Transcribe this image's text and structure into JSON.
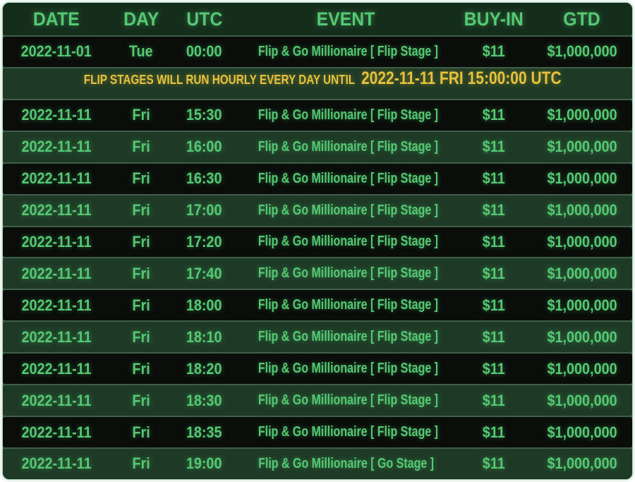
{
  "table": {
    "columns": [
      {
        "key": "date",
        "label": "DATE"
      },
      {
        "key": "day",
        "label": "DAY"
      },
      {
        "key": "utc",
        "label": "UTC"
      },
      {
        "key": "event",
        "label": "EVENT"
      },
      {
        "key": "buyin",
        "label": "BUY-IN"
      },
      {
        "key": "gtd",
        "label": "GTD"
      }
    ],
    "rows": [
      {
        "type": "event",
        "date": "2022-11-01",
        "day": "Tue",
        "utc": "00:00",
        "event": "Flip & Go Millionaire [ Flip Stage ]",
        "buyin": "$11",
        "gtd": "$1,000,000"
      },
      {
        "type": "notice",
        "notice_prefix": "FLIP STAGES WILL RUN HOURLY EVERY DAY UNTIL",
        "notice_highlight": "2022-11-11 FRI 15:00:00 UTC"
      },
      {
        "type": "event",
        "date": "2022-11-11",
        "day": "Fri",
        "utc": "15:30",
        "event": "Flip & Go Millionaire [ Flip Stage ]",
        "buyin": "$11",
        "gtd": "$1,000,000"
      },
      {
        "type": "event",
        "date": "2022-11-11",
        "day": "Fri",
        "utc": "16:00",
        "event": "Flip & Go Millionaire [ Flip Stage ]",
        "buyin": "$11",
        "gtd": "$1,000,000"
      },
      {
        "type": "event",
        "date": "2022-11-11",
        "day": "Fri",
        "utc": "16:30",
        "event": "Flip & Go Millionaire [ Flip Stage ]",
        "buyin": "$11",
        "gtd": "$1,000,000"
      },
      {
        "type": "event",
        "date": "2022-11-11",
        "day": "Fri",
        "utc": "17:00",
        "event": "Flip & Go Millionaire [ Flip Stage ]",
        "buyin": "$11",
        "gtd": "$1,000,000"
      },
      {
        "type": "event",
        "date": "2022-11-11",
        "day": "Fri",
        "utc": "17:20",
        "event": "Flip & Go Millionaire [ Flip Stage ]",
        "buyin": "$11",
        "gtd": "$1,000,000"
      },
      {
        "type": "event",
        "date": "2022-11-11",
        "day": "Fri",
        "utc": "17:40",
        "event": "Flip & Go Millionaire [ Flip Stage ]",
        "buyin": "$11",
        "gtd": "$1,000,000"
      },
      {
        "type": "event",
        "date": "2022-11-11",
        "day": "Fri",
        "utc": "18:00",
        "event": "Flip & Go Millionaire [ Flip Stage ]",
        "buyin": "$11",
        "gtd": "$1,000,000"
      },
      {
        "type": "event",
        "date": "2022-11-11",
        "day": "Fri",
        "utc": "18:10",
        "event": "Flip & Go Millionaire [ Flip Stage ]",
        "buyin": "$11",
        "gtd": "$1,000,000"
      },
      {
        "type": "event",
        "date": "2022-11-11",
        "day": "Fri",
        "utc": "18:20",
        "event": "Flip & Go Millionaire [ Flip Stage ]",
        "buyin": "$11",
        "gtd": "$1,000,000"
      },
      {
        "type": "event",
        "date": "2022-11-11",
        "day": "Fri",
        "utc": "18:30",
        "event": "Flip & Go Millionaire [ Flip Stage ]",
        "buyin": "$11",
        "gtd": "$1,000,000"
      },
      {
        "type": "event",
        "date": "2022-11-11",
        "day": "Fri",
        "utc": "18:35",
        "event": "Flip & Go Millionaire [ Flip Stage ]",
        "buyin": "$11",
        "gtd": "$1,000,000"
      },
      {
        "type": "event",
        "date": "2022-11-11",
        "day": "Fri",
        "utc": "19:00",
        "event": "Flip & Go Millionaire [ Go Stage ]",
        "buyin": "$11",
        "gtd": "$1,000,000"
      }
    ]
  },
  "colors": {
    "page_bg": "#ffffff",
    "table_border": "#aed2ba",
    "separator": "#3f5f48",
    "header_bg": "#152e1c",
    "row_dark_bg": "#0a0d0a",
    "row_green_bg": "#1e3a26",
    "green_text": "#55c973",
    "yellow_text": "#e6c23c"
  }
}
